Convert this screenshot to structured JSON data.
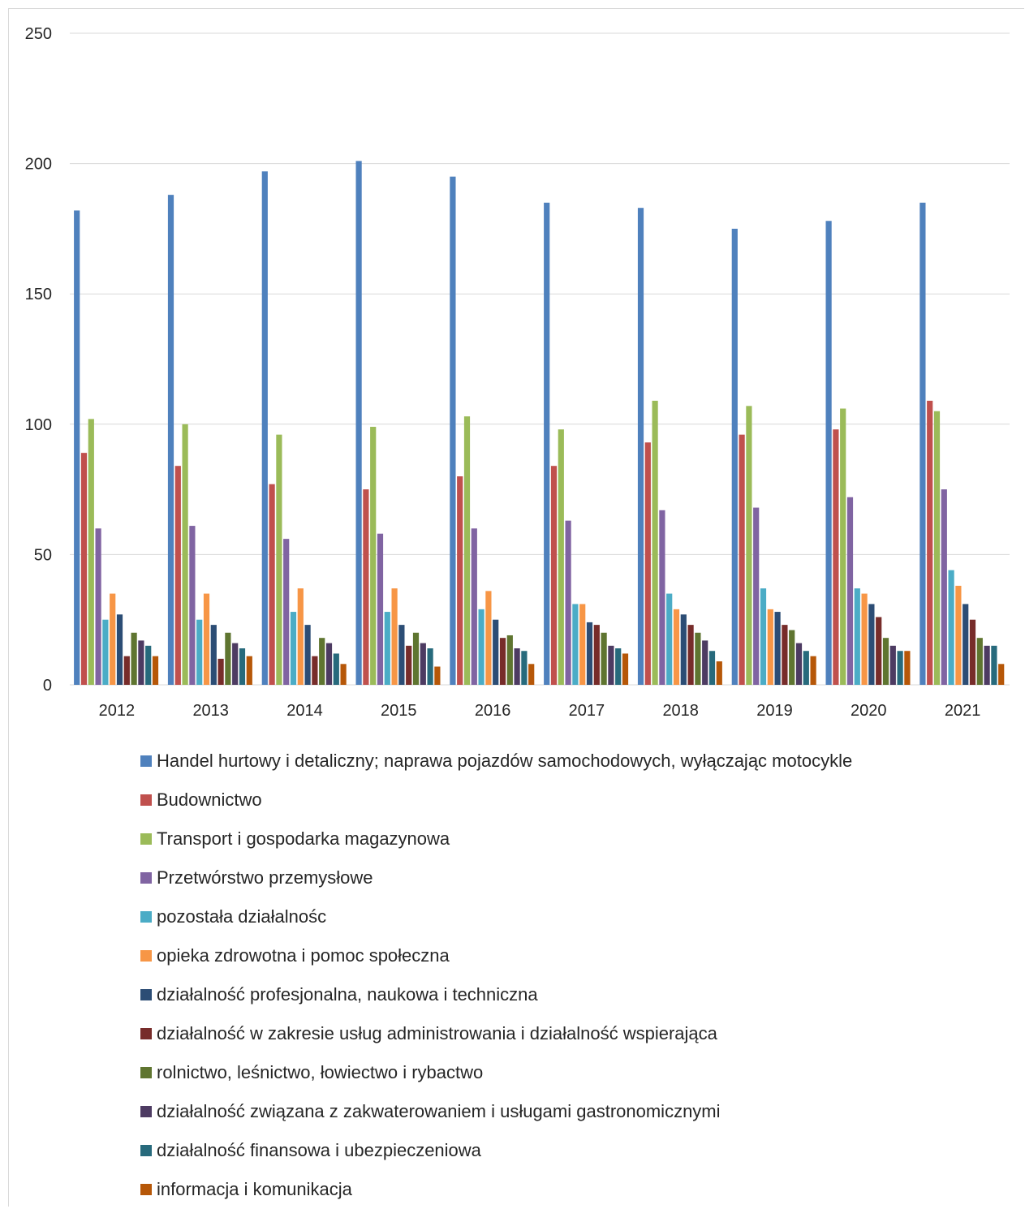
{
  "chart_data": {
    "type": "bar",
    "title": "",
    "xlabel": "",
    "ylabel": "",
    "ylim": [
      0,
      250
    ],
    "yticks": [
      "0",
      "50",
      "100",
      "150",
      "200",
      "250"
    ],
    "grid": "horizontal",
    "legend_position": "bottom",
    "categories": [
      "2012",
      "2013",
      "2014",
      "2015",
      "2016",
      "2017",
      "2018",
      "2019",
      "2020",
      "2021"
    ],
    "series": [
      {
        "name": "Handel hurtowy i detaliczny; naprawa pojazdów samochodowych, wyłączając motocykle",
        "color": "#4f81bd",
        "values": [
          182,
          188,
          197,
          201,
          195,
          185,
          183,
          175,
          178,
          185
        ]
      },
      {
        "name": "Budownictwo",
        "color": "#c0504d",
        "values": [
          89,
          84,
          77,
          75,
          80,
          84,
          93,
          96,
          98,
          109
        ]
      },
      {
        "name": "Transport i gospodarka magazynowa",
        "color": "#9bbb59",
        "values": [
          102,
          100,
          96,
          99,
          103,
          98,
          109,
          107,
          106,
          105
        ]
      },
      {
        "name": "Przetwórstwo przemysłowe",
        "color": "#8064a2",
        "values": [
          60,
          61,
          56,
          58,
          60,
          63,
          67,
          68,
          72,
          75
        ]
      },
      {
        "name": "pozostała działalnośc",
        "color": "#4bacc6",
        "values": [
          25,
          25,
          28,
          28,
          29,
          31,
          35,
          37,
          37,
          44
        ]
      },
      {
        "name": "opieka zdrowotna i pomoc społeczna",
        "color": "#f79646",
        "values": [
          35,
          35,
          37,
          37,
          36,
          31,
          29,
          29,
          35,
          38
        ]
      },
      {
        "name": "działalność profesjonalna, naukowa i techniczna",
        "color": "#2c4d75",
        "values": [
          27,
          23,
          23,
          23,
          25,
          24,
          27,
          28,
          31,
          31
        ]
      },
      {
        "name": "działalność w zakresie usług administrowania i działalność wspierająca",
        "color": "#772c2a",
        "values": [
          11,
          10,
          11,
          15,
          18,
          23,
          23,
          23,
          26,
          25
        ]
      },
      {
        "name": "rolnictwo, leśnictwo, łowiectwo i rybactwo",
        "color": "#5f7530",
        "values": [
          20,
          20,
          18,
          20,
          19,
          20,
          20,
          21,
          18,
          18
        ]
      },
      {
        "name": "działalność związana z zakwaterowaniem i usługami gastronomicznymi",
        "color": "#4d3b62",
        "values": [
          17,
          16,
          16,
          16,
          14,
          15,
          17,
          16,
          15,
          15
        ]
      },
      {
        "name": "działalność finansowa i ubezpieczeniowa",
        "color": "#276a7c",
        "values": [
          15,
          14,
          12,
          14,
          13,
          14,
          13,
          13,
          13,
          15
        ]
      },
      {
        "name": "informacja i komunikacja",
        "color": "#b65708",
        "values": [
          11,
          11,
          8,
          7,
          8,
          12,
          9,
          11,
          13,
          8
        ]
      }
    ]
  }
}
